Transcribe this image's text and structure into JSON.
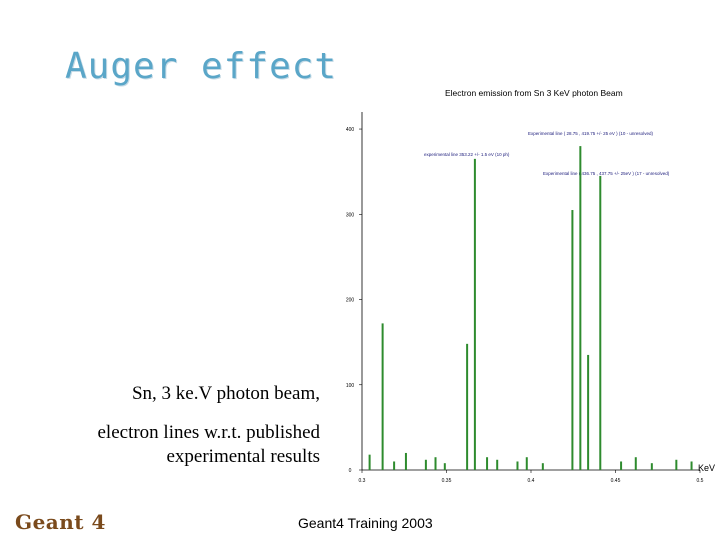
{
  "slide": {
    "title": "Auger effect",
    "caption_line1": "Sn, 3 ke.V photon beam,",
    "caption_line2": "electron lines w.r.t. published experimental results",
    "footer": "Geant4 Training 2003",
    "logo": "Geant 4"
  },
  "colors": {
    "title": "#5aa6c8",
    "series": "#2e8b2e",
    "logo": "#7a4a1c"
  },
  "chart_data": {
    "type": "bar",
    "title": "Electron emission from Sn 3 KeV photon Beam",
    "xlabel": "KeV",
    "ylabel": "",
    "xlim": [
      0.3,
      0.5
    ],
    "ylim": [
      0,
      420
    ],
    "yticks": [
      0,
      100,
      200,
      300,
      400
    ],
    "xticks": [
      0.3,
      0.35,
      0.4,
      0.45,
      0.5
    ],
    "xtick_labels": [
      "0.3",
      "0.35",
      "0.4",
      "0.45",
      "0.5"
    ],
    "annotations": [
      "Experimental line ( 28.75 , 419.75 +/- 25 eV ) (10 - unresolved)",
      "experimental line 353.22 +/- 1.5 eV (10 ph)",
      "Experimental line ( 436.75 , 437.75 +/- 25eV ) (17 - unresolved)"
    ],
    "series": [
      {
        "x": [
          0.3045,
          0.3122,
          0.319,
          0.326,
          0.3378,
          0.3435,
          0.349,
          0.3622,
          0.3668,
          0.374,
          0.38,
          0.392,
          0.3975,
          0.407,
          0.4245,
          0.4292,
          0.4338,
          0.441,
          0.4533,
          0.462,
          0.4715,
          0.486,
          0.495
        ],
        "values": [
          18,
          172,
          10,
          20,
          12,
          15,
          8,
          148,
          365,
          15,
          12,
          10,
          15,
          8,
          305,
          380,
          135,
          345,
          10,
          15,
          8,
          12,
          10
        ]
      }
    ]
  }
}
